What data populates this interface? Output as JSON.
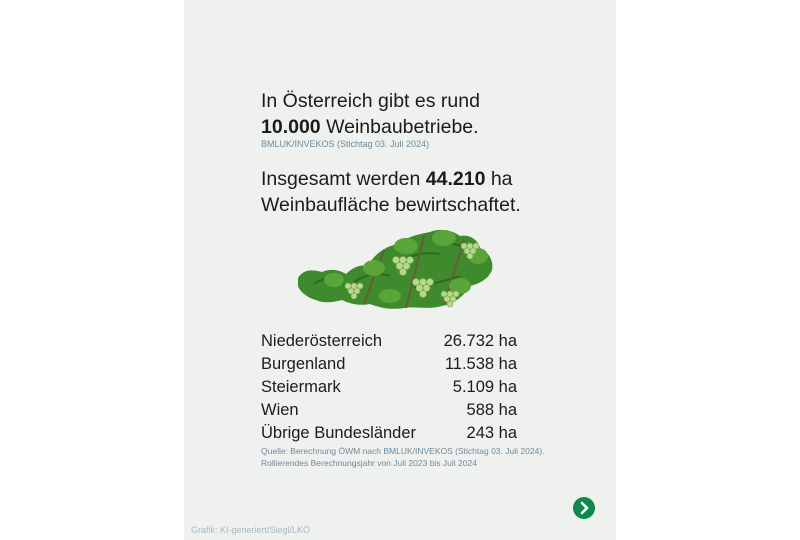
{
  "headline1": {
    "text1": "In Österreich gibt es rund",
    "bold": "10.000",
    "text2": " Weinbaubetriebe."
  },
  "source1": "BMLUK/INVEKOS (Stichtag 03. Juli 2024)",
  "headline2": {
    "text1": "Insgesamt werden ",
    "bold": "44.210",
    "text2": " ha",
    "text3": "Weinbaufläche bewirtschaftet."
  },
  "table": {
    "rows": [
      {
        "region": "Niederösterreich",
        "value": "26.732 ha"
      },
      {
        "region": "Burgenland",
        "value": "11.538 ha"
      },
      {
        "region": "Steiermark",
        "value": "5.109 ha"
      },
      {
        "region": "Wien",
        "value": "588 ha"
      },
      {
        "region": "Übrige Bundesländer",
        "value": "243 ha"
      }
    ]
  },
  "footnote": "Quelle: Berechnung ÖWM nach BMLUK/INVEKOS (Stichtag 03. Juli 2024). Rollierendes Berechnungsjahr von Juli 2023 bis Juli 2024",
  "credit": "Grafik: KI-generiert/Siegl/LKÖ",
  "colors": {
    "background": "#eef1ee",
    "text": "#1c1c1c",
    "source": "#6f8a9c",
    "button": "#0e8a4a",
    "leaf": "#3f8a2c",
    "grape": "#b7d98a"
  },
  "icons": {
    "map": "austria-vineyard-map-icon",
    "next": "chevron-right-icon"
  }
}
